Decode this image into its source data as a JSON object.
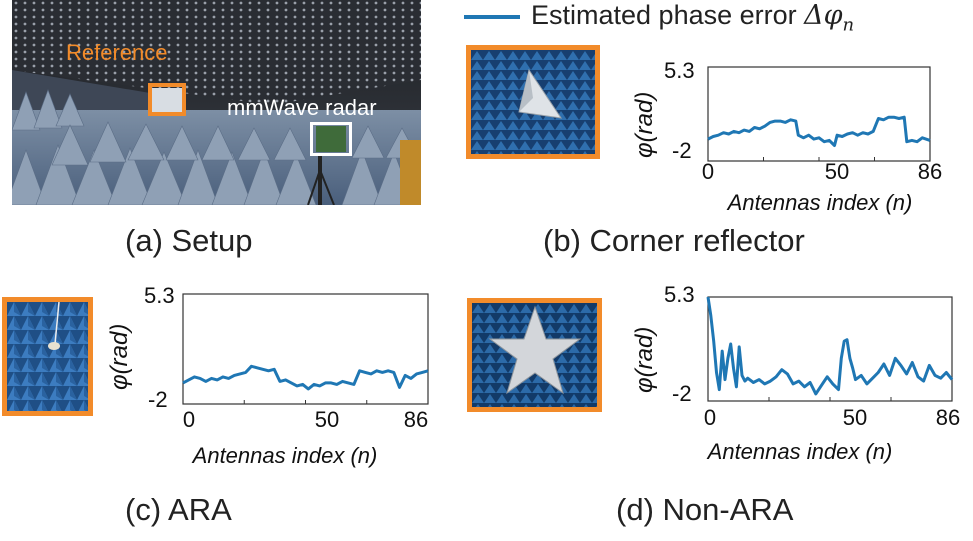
{
  "figure": {
    "legend": {
      "label": "Estimated phase error",
      "symbol": "Δφ",
      "subscript": "n",
      "color": "#1f77b4"
    },
    "setup_photo": {
      "reference_label": "Reference",
      "radar_label": "mmWave radar",
      "reference_color": "#f28b2a",
      "radar_color": "#ffffff"
    },
    "captions": {
      "a": "(a) Setup",
      "b": "(b) Corner reflector",
      "c": "(c) ARA",
      "d": "(d) Non-ARA"
    },
    "axis": {
      "ylabel_symbol": "φ",
      "ylabel_unit": "(rad)",
      "xlabel": "Antennas index (n)",
      "y_top": "5.3",
      "y_bottom": "-2",
      "x_ticks": [
        "0",
        "50",
        "86"
      ]
    }
  },
  "chart_data": [
    {
      "type": "line",
      "title": "(b) Corner reflector",
      "xlabel": "Antennas index (n)",
      "ylabel": "φ (rad)",
      "xlim": [
        0,
        86
      ],
      "ylim": [
        -2,
        5.3
      ],
      "series": [
        {
          "name": "Estimated phase error Δφn",
          "x": [
            0,
            2,
            4,
            6,
            8,
            10,
            12,
            14,
            16,
            18,
            20,
            22,
            24,
            26,
            28,
            30,
            32,
            34,
            35,
            37,
            39,
            41,
            43,
            45,
            47,
            49,
            50,
            52,
            54,
            56,
            58,
            60,
            62,
            64,
            66,
            68,
            70,
            72,
            74,
            76,
            77,
            79,
            81,
            83,
            86
          ],
          "y": [
            -0.3,
            -0.1,
            0.0,
            0.2,
            0.1,
            0.3,
            0.2,
            0.4,
            0.3,
            0.6,
            0.5,
            0.7,
            1.0,
            1.1,
            1.1,
            1.0,
            1.2,
            1.1,
            0.0,
            -0.2,
            0.0,
            -0.3,
            -0.2,
            -0.5,
            -0.4,
            -0.8,
            0.0,
            -0.1,
            0.1,
            0.2,
            0.0,
            0.2,
            0.1,
            0.3,
            1.3,
            1.2,
            1.4,
            1.4,
            1.3,
            1.4,
            -0.5,
            -0.4,
            -0.5,
            -0.2,
            -0.4
          ]
        }
      ]
    },
    {
      "type": "line",
      "title": "(c) ARA",
      "xlabel": "Antennas index (n)",
      "ylabel": "φ (rad)",
      "xlim": [
        0,
        86
      ],
      "ylim": [
        -2,
        5.3
      ],
      "series": [
        {
          "name": "Estimated phase error Δφn",
          "x": [
            0,
            2,
            4,
            6,
            8,
            10,
            12,
            14,
            16,
            18,
            20,
            22,
            24,
            26,
            28,
            30,
            32,
            34,
            36,
            38,
            40,
            42,
            44,
            46,
            48,
            50,
            52,
            54,
            56,
            58,
            60,
            62,
            64,
            66,
            68,
            70,
            72,
            74,
            76,
            78,
            80,
            82,
            84,
            86
          ],
          "y": [
            -0.6,
            -0.4,
            -0.2,
            -0.3,
            -0.5,
            -0.3,
            -0.4,
            -0.2,
            -0.3,
            -0.1,
            0.0,
            0.1,
            0.5,
            0.4,
            0.3,
            0.2,
            0.3,
            -0.5,
            -0.4,
            -0.6,
            -0.8,
            -0.7,
            -1.0,
            -0.7,
            -0.8,
            -0.6,
            -0.6,
            -0.7,
            -0.5,
            -0.6,
            -0.7,
            0.2,
            0.1,
            0.0,
            0.2,
            0.1,
            0.2,
            0.1,
            -0.9,
            -0.1,
            -0.3,
            0.0,
            0.1,
            0.2
          ]
        }
      ]
    },
    {
      "type": "line",
      "title": "(d) Non-ARA",
      "xlabel": "Antennas index (n)",
      "ylabel": "φ (rad)",
      "xlim": [
        0,
        86
      ],
      "ylim": [
        -2,
        5.3
      ],
      "series": [
        {
          "name": "Estimated phase error Δφn",
          "x": [
            0,
            1,
            2,
            3,
            4,
            5,
            6,
            7,
            8,
            9,
            10,
            11,
            12,
            13,
            14,
            16,
            18,
            20,
            22,
            24,
            26,
            28,
            30,
            32,
            34,
            36,
            38,
            40,
            42,
            44,
            46,
            47,
            48,
            49,
            50,
            51,
            52,
            54,
            56,
            58,
            60,
            62,
            64,
            66,
            68,
            70,
            72,
            74,
            76,
            78,
            80,
            82,
            84,
            86
          ],
          "y": [
            5.3,
            4.0,
            2.2,
            0.0,
            -1.2,
            1.5,
            -0.5,
            1.0,
            2.0,
            0.3,
            -1.0,
            1.8,
            -0.2,
            -0.6,
            -0.4,
            -0.7,
            -0.5,
            -0.8,
            -0.6,
            -0.3,
            0.2,
            -0.1,
            -0.8,
            -0.6,
            -1.0,
            -0.7,
            -1.5,
            -0.9,
            -0.3,
            -0.8,
            -1.2,
            1.0,
            2.2,
            2.3,
            1.0,
            0.3,
            -0.5,
            -0.2,
            -0.8,
            -0.4,
            0.0,
            0.6,
            -0.2,
            1.0,
            0.5,
            -0.1,
            0.7,
            -0.3,
            -0.6,
            0.5,
            -0.2,
            -0.4,
            0.0,
            -0.5
          ]
        }
      ]
    }
  ]
}
